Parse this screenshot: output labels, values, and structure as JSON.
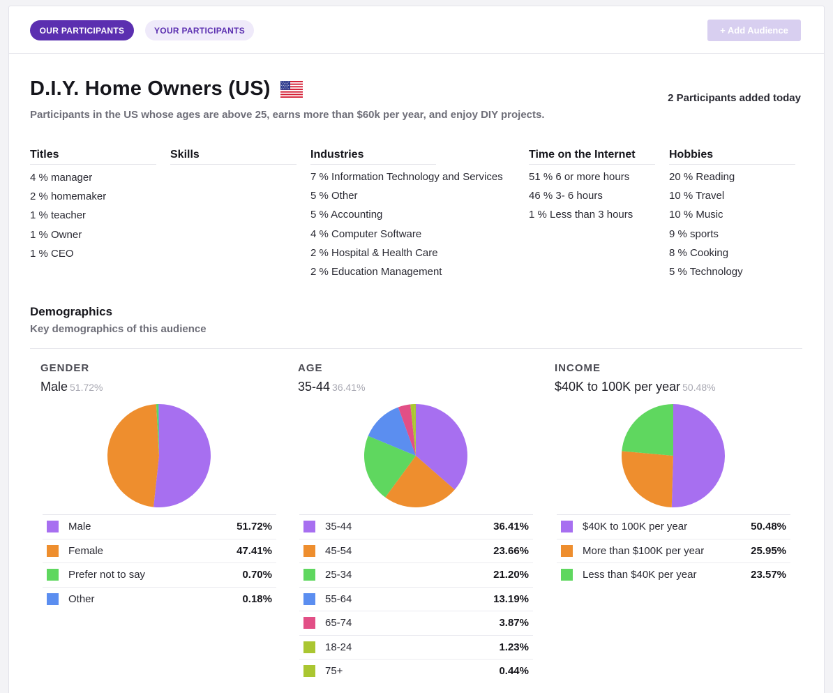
{
  "tabs": [
    {
      "label": "OUR PARTICIPANTS",
      "active": true
    },
    {
      "label": "YOUR PARTICIPANTS",
      "active": false
    }
  ],
  "add_audience_label": "+ Add Audience",
  "audience": {
    "title": "D.I.Y. Home Owners (US)",
    "flag_icon": "us-flag-icon",
    "participants_today": "2 Participants added today",
    "description": "Participants in the US whose ages are above 25, earns more than $60k per year, and enjoy DIY projects."
  },
  "attributes": {
    "titles": {
      "heading": "Titles",
      "items": [
        "4 % manager",
        "2 % homemaker",
        "1 % teacher",
        "1 % Owner",
        "1 % CEO"
      ]
    },
    "skills": {
      "heading": "Skills",
      "items": []
    },
    "industries": {
      "heading": "Industries",
      "items": [
        "7 % Information Technology and Services",
        "5 % Other",
        "5 % Accounting",
        "4 % Computer Software",
        "2 % Hospital & Health Care",
        "2 % Education Management"
      ]
    },
    "time_on_internet": {
      "heading": "Time on the Internet",
      "items": [
        "51 % 6 or more hours",
        "46 % 3- 6 hours",
        "1 % Less than 3 hours"
      ]
    },
    "hobbies": {
      "heading": "Hobbies",
      "items": [
        "20 % Reading",
        "10 % Travel",
        "10 % Music",
        "9 % sports",
        "8 % Cooking",
        "5 % Technology"
      ]
    }
  },
  "demographics": {
    "title": "Demographics",
    "subtitle": "Key demographics of this audience"
  },
  "chart_data": [
    {
      "type": "pie",
      "title": "GENDER",
      "top_label": "Male",
      "top_value": "51.72%",
      "categories": [
        "Male",
        "Female",
        "Prefer not to say",
        "Other"
      ],
      "values": [
        51.72,
        47.41,
        0.7,
        0.18
      ],
      "value_labels": [
        "51.72%",
        "47.41%",
        "0.70%",
        "0.18%"
      ],
      "colors": [
        "#a76ff0",
        "#ee8e2e",
        "#5fd75f",
        "#5b8ef0"
      ]
    },
    {
      "type": "pie",
      "title": "AGE",
      "top_label": "35-44",
      "top_value": "36.41%",
      "categories": [
        "35-44",
        "45-54",
        "25-34",
        "55-64",
        "65-74",
        "18-24",
        "75+"
      ],
      "values": [
        36.41,
        23.66,
        21.2,
        13.19,
        3.87,
        1.23,
        0.44
      ],
      "value_labels": [
        "36.41%",
        "23.66%",
        "21.20%",
        "13.19%",
        "3.87%",
        "1.23%",
        "0.44%"
      ],
      "colors": [
        "#a76ff0",
        "#ee8e2e",
        "#5fd75f",
        "#5b8ef0",
        "#e24f86",
        "#aac631",
        "#aac631"
      ]
    },
    {
      "type": "pie",
      "title": "INCOME",
      "top_label": "$40K to 100K per year",
      "top_value": "50.48%",
      "categories": [
        "$40K to 100K per year",
        "More than $100K per year",
        "Less than $40K per year"
      ],
      "values": [
        50.48,
        25.95,
        23.57
      ],
      "value_labels": [
        "50.48%",
        "25.95%",
        "23.57%"
      ],
      "colors": [
        "#a76ff0",
        "#ee8e2e",
        "#5fd75f"
      ]
    }
  ]
}
